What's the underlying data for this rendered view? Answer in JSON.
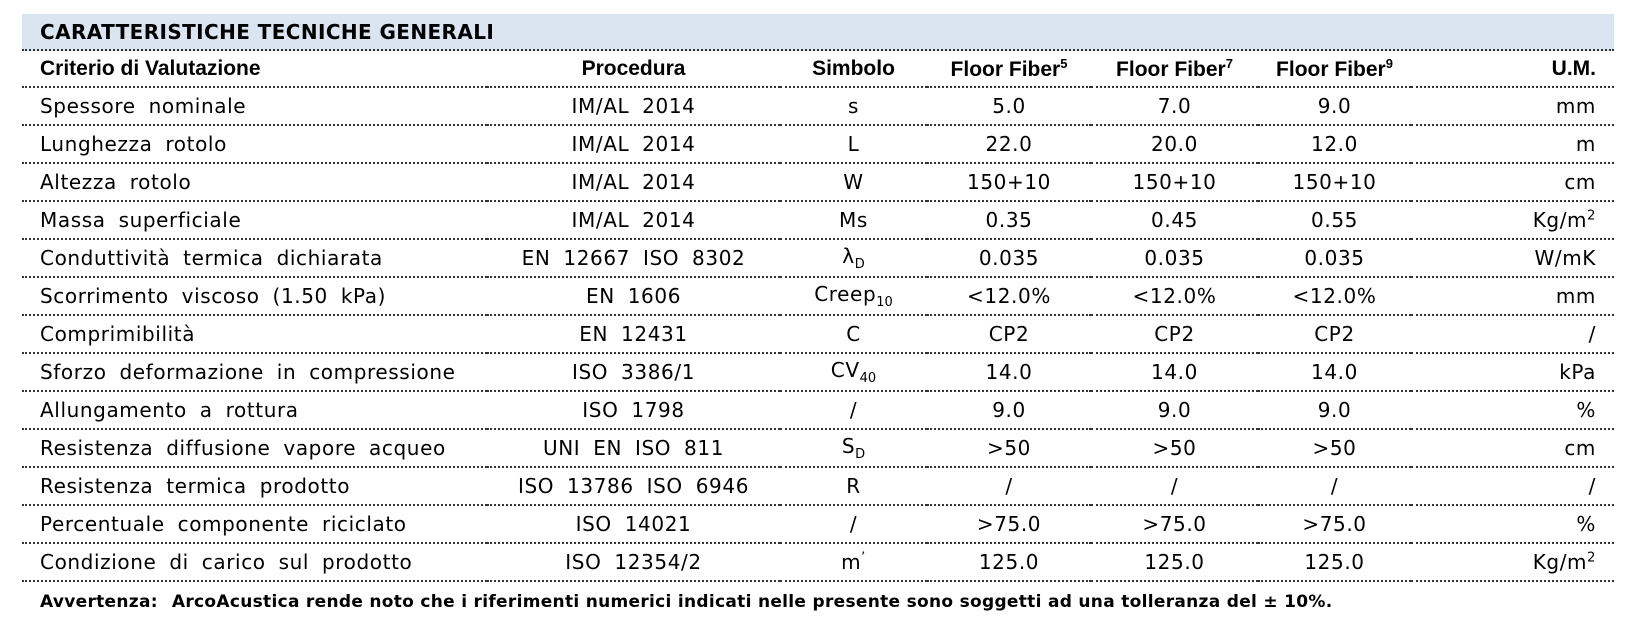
{
  "title": "CARATTERISTICHE TECNICHE GENERALI",
  "headers": {
    "criterio": "Criterio di Valutazione",
    "procedura": "Procedura",
    "simbolo": "Simbolo",
    "f5": {
      "label": "Floor Fiber",
      "sup": "5"
    },
    "f7": {
      "label": "Floor Fiber",
      "sup": "7"
    },
    "f9": {
      "label": "Floor Fiber",
      "sup": "9"
    },
    "um": "U.M."
  },
  "rows": [
    {
      "criterio": "Spessore nominale",
      "procedura": "IM/AL 2014",
      "sym": "s",
      "sym_sub": "",
      "sym_sup": "",
      "f5": "5.0",
      "f7": "7.0",
      "f9": "9.0",
      "um": "mm",
      "um_sup": ""
    },
    {
      "criterio": "Lunghezza rotolo",
      "procedura": "IM/AL 2014",
      "sym": "L",
      "sym_sub": "",
      "sym_sup": "",
      "f5": "22.0",
      "f7": "20.0",
      "f9": "12.0",
      "um": "m",
      "um_sup": ""
    },
    {
      "criterio": "Altezza rotolo",
      "procedura": "IM/AL 2014",
      "sym": "W",
      "sym_sub": "",
      "sym_sup": "",
      "f5": "150+10",
      "f7": "150+10",
      "f9": "150+10",
      "um": "cm",
      "um_sup": ""
    },
    {
      "criterio": "Massa superficiale",
      "procedura": "IM/AL 2014",
      "sym": "Ms",
      "sym_sub": "",
      "sym_sup": "",
      "f5": "0.35",
      "f7": "0.45",
      "f9": "0.55",
      "um": "Kg/m",
      "um_sup": "2"
    },
    {
      "criterio": "Conduttività termica dichiarata",
      "procedura": "EN 12667 ISO 8302",
      "sym": "λ",
      "sym_sub": "D",
      "sym_sup": "",
      "f5": "0.035",
      "f7": "0.035",
      "f9": "0.035",
      "um": "W/mK",
      "um_sup": ""
    },
    {
      "criterio": "Scorrimento viscoso (1.50 kPa)",
      "procedura": "EN 1606",
      "sym": "Creep",
      "sym_sub": "10",
      "sym_sup": "",
      "f5": "<12.0%",
      "f7": "<12.0%",
      "f9": "<12.0%",
      "um": "mm",
      "um_sup": ""
    },
    {
      "criterio": "Comprimibilità",
      "procedura": "EN 12431",
      "sym": "C",
      "sym_sub": "",
      "sym_sup": "",
      "f5": "CP2",
      "f7": "CP2",
      "f9": "CP2",
      "um": "/",
      "um_sup": ""
    },
    {
      "criterio": "Sforzo deformazione in compressione",
      "procedura": "ISO 3386/1",
      "sym": "CV",
      "sym_sub": "40",
      "sym_sup": "",
      "f5": "14.0",
      "f7": "14.0",
      "f9": "14.0",
      "um": "kPa",
      "um_sup": ""
    },
    {
      "criterio": "Allungamento a rottura",
      "procedura": "ISO 1798",
      "sym": "/",
      "sym_sub": "",
      "sym_sup": "",
      "f5": "9.0",
      "f7": "9.0",
      "f9": "9.0",
      "um": "%",
      "um_sup": ""
    },
    {
      "criterio": "Resistenza diffusione vapore acqueo",
      "procedura": "UNI EN ISO 811",
      "sym": "S",
      "sym_sub": "D",
      "sym_sup": "",
      "f5": ">50",
      "f7": ">50",
      "f9": ">50",
      "um": "cm",
      "um_sup": ""
    },
    {
      "criterio": "Resistenza termica prodotto",
      "procedura": "ISO 13786 ISO 6946",
      "sym": "R",
      "sym_sub": "",
      "sym_sup": "",
      "f5": "/",
      "f7": "/",
      "f9": "/",
      "um": "/",
      "um_sup": ""
    },
    {
      "criterio": "Percentuale componente riciclato",
      "procedura": "ISO 14021",
      "sym": "/",
      "sym_sub": "",
      "sym_sup": "",
      "f5": ">75.0",
      "f7": ">75.0",
      "f9": ">75.0",
      "um": "%",
      "um_sup": ""
    },
    {
      "criterio": "Condizione di carico sul prodotto",
      "procedura": "ISO 12354/2",
      "sym": "m",
      "sym_sub": "",
      "sym_sup": "’",
      "f5": "125.0",
      "f7": "125.0",
      "f9": "125.0",
      "um": "Kg/m",
      "um_sup": "2"
    }
  ],
  "note": {
    "label": "Avvertenza:",
    "text": "ArcoAcustica rende noto che i riferimenti numerici indicati nelle presente sono soggetti ad una tolleranza del ± 10%."
  },
  "colors": {
    "title_bg": "#dbe5f1",
    "rule": "#333333"
  }
}
